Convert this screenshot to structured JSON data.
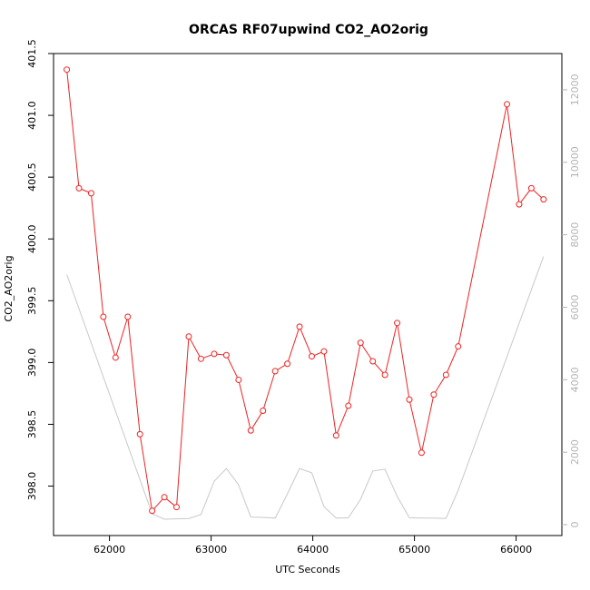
{
  "chart_data": {
    "type": "line",
    "title": "ORCAS RF07upwind CO2_AO2orig",
    "xlabel": "UTC Seconds",
    "ylabel": "CO2_AO2orig",
    "xlim": [
      61450,
      66450
    ],
    "ylim": [
      397.6,
      401.5
    ],
    "y2lim": [
      -300,
      13000
    ],
    "x_ticks": [
      62000,
      63000,
      64000,
      65000,
      66000
    ],
    "x_tick_labels": [
      "62000",
      "63000",
      "64000",
      "65000",
      "66000"
    ],
    "y_ticks": [
      398.0,
      398.5,
      399.0,
      399.5,
      400.0,
      400.5,
      401.0,
      401.5
    ],
    "y_tick_labels": [
      "398.0",
      "398.5",
      "399.0",
      "399.5",
      "400.0",
      "400.5",
      "401.0",
      "401.5"
    ],
    "y2_ticks": [
      0,
      2000,
      4000,
      6000,
      8000,
      10000,
      12000
    ],
    "y2_tick_labels": [
      "0",
      "2000",
      "4000",
      "6000",
      "8000",
      "10000",
      "12000"
    ],
    "grid": false,
    "colors": {
      "series": "#ee2222",
      "secondary": "#c8c8c8",
      "axis_right": "#b4b4b4"
    },
    "series": [
      {
        "axis": "left",
        "marker": "circle",
        "x": [
          61580,
          61700,
          61820,
          61940,
          62060,
          62180,
          62300,
          62420,
          62540,
          62660,
          62780,
          62900,
          63030,
          63150,
          63270,
          63390,
          63510,
          63630,
          63750,
          63870,
          63990,
          64110,
          64230,
          64350,
          64470,
          64590,
          64710,
          64830,
          64950,
          65070,
          65190,
          65310,
          65430,
          65910,
          66030,
          66150,
          66270
        ],
        "values": [
          401.37,
          400.41,
          400.37,
          399.37,
          399.04,
          399.37,
          398.42,
          397.8,
          397.91,
          397.83,
          399.21,
          399.03,
          399.07,
          399.06,
          398.86,
          398.45,
          398.61,
          398.93,
          398.99,
          399.29,
          399.05,
          399.09,
          398.41,
          398.65,
          399.16,
          399.01,
          398.9,
          399.32,
          398.7,
          398.27,
          398.74,
          398.9,
          399.13,
          401.09,
          400.28,
          400.41,
          400.32
        ]
      },
      {
        "axis": "right",
        "x": [
          61580,
          62420,
          62540,
          62660,
          62780,
          62900,
          63030,
          63150,
          63270,
          63390,
          63510,
          63630,
          63750,
          63870,
          63990,
          64110,
          64230,
          64350,
          64470,
          64590,
          64710,
          64830,
          64950,
          65070,
          65190,
          65310,
          65430,
          66270
        ],
        "values": [
          6900,
          300,
          150,
          160,
          170,
          280,
          1200,
          1550,
          1100,
          210,
          200,
          180,
          850,
          1550,
          1430,
          500,
          180,
          190,
          700,
          1480,
          1530,
          780,
          190,
          180,
          180,
          170,
          950,
          7400
        ]
      }
    ]
  }
}
